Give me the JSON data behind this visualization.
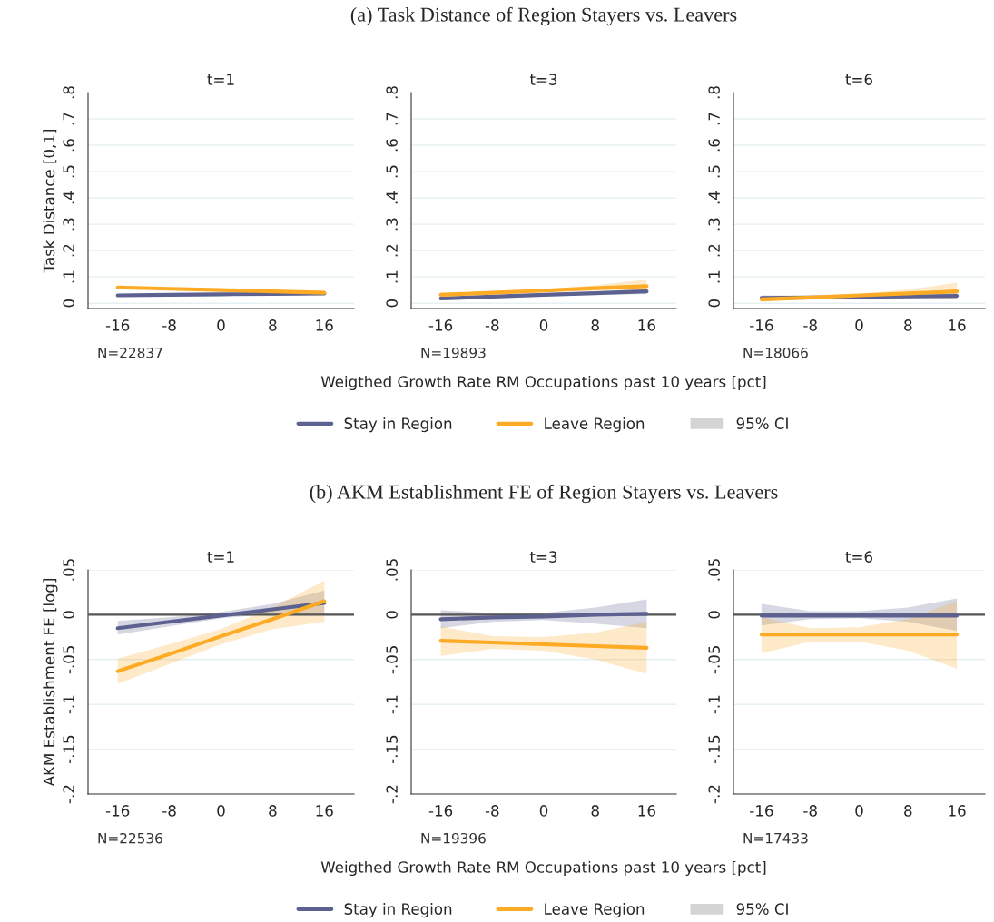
{
  "chart_data": [
    {
      "type": "line",
      "subtitle": "t=1",
      "ylabel": "Task Distance [0,1]",
      "grid": "y",
      "x": [
        -16,
        -8,
        0,
        8,
        16
      ],
      "xlim": [
        -20.6,
        20.6
      ],
      "xticks": [
        -16,
        -8,
        0,
        8,
        16
      ],
      "ylim": [
        -0.02,
        0.8
      ],
      "yticks": [
        0,
        {
          "value": 0.1,
          "label": ".1"
        },
        {
          "value": 0.2,
          "label": ".2"
        },
        {
          "value": 0.3,
          "label": ".3"
        },
        {
          "value": 0.4,
          "label": ".4"
        },
        {
          "value": 0.5,
          "label": ".5"
        },
        {
          "value": 0.6,
          "label": ".6"
        },
        {
          "value": 0.7,
          "label": ".7"
        },
        {
          "value": 0.8,
          "label": ".8"
        }
      ],
      "annotations": [
        "N=22837"
      ],
      "series": [
        {
          "color": "#5c6190",
          "values": [
            0.03,
            0.032,
            0.034,
            0.035,
            0.037
          ]
        },
        {
          "color": "#fdaa25",
          "values": [
            0.06,
            0.055,
            0.05,
            0.045,
            0.04
          ],
          "lower": [
            0.055,
            0.051,
            0.047,
            0.041,
            0.03
          ],
          "upper": [
            0.065,
            0.059,
            0.053,
            0.05,
            0.05
          ]
        }
      ]
    },
    {
      "type": "line",
      "title": "(a) Task Distance of Region Stayers vs. Leavers",
      "subtitle": "t=3",
      "xlabel": "Weigthed Growth Rate RM Occupations past 10 years [pct]",
      "legend": "bottom",
      "grid": "y",
      "x": [
        -16,
        -8,
        0,
        8,
        16
      ],
      "xlim": [
        -20.6,
        20.6
      ],
      "xticks": [
        -16,
        -8,
        0,
        8,
        16
      ],
      "ylim": [
        -0.02,
        0.8
      ],
      "yticks": [
        0,
        {
          "value": 0.1,
          "label": ".1"
        },
        {
          "value": 0.2,
          "label": ".2"
        },
        {
          "value": 0.3,
          "label": ".3"
        },
        {
          "value": 0.4,
          "label": ".4"
        },
        {
          "value": 0.5,
          "label": ".5"
        },
        {
          "value": 0.6,
          "label": ".6"
        },
        {
          "value": 0.7,
          "label": ".7"
        },
        {
          "value": 0.8,
          "label": ".8"
        }
      ],
      "annotations": [
        "N=19893",
        "95% CI"
      ],
      "series": [
        {
          "name": "Stay in Region",
          "color": "#5c6190",
          "values": [
            0.018,
            0.025,
            0.032,
            0.038,
            0.045
          ],
          "lower": [
            0.012,
            0.02,
            0.028,
            0.032,
            0.035
          ],
          "upper": [
            0.025,
            0.03,
            0.036,
            0.045,
            0.055
          ]
        },
        {
          "name": "Leave Region",
          "color": "#fdaa25",
          "values": [
            0.032,
            0.04,
            0.048,
            0.057,
            0.065
          ],
          "lower": [
            0.025,
            0.034,
            0.043,
            0.048,
            0.045
          ],
          "upper": [
            0.04,
            0.046,
            0.053,
            0.068,
            0.09
          ]
        }
      ]
    },
    {
      "type": "line",
      "subtitle": "t=6",
      "grid": "y",
      "x": [
        -16,
        -8,
        0,
        8,
        16
      ],
      "xlim": [
        -20.6,
        20.6
      ],
      "xticks": [
        -16,
        -8,
        0,
        8,
        16
      ],
      "ylim": [
        -0.02,
        0.8
      ],
      "yticks": [
        0,
        {
          "value": 0.1,
          "label": ".1"
        },
        {
          "value": 0.2,
          "label": ".2"
        },
        {
          "value": 0.3,
          "label": ".3"
        },
        {
          "value": 0.4,
          "label": ".4"
        },
        {
          "value": 0.5,
          "label": ".5"
        },
        {
          "value": 0.6,
          "label": ".6"
        },
        {
          "value": 0.7,
          "label": ".7"
        },
        {
          "value": 0.8,
          "label": ".8"
        }
      ],
      "annotations": [
        "N=18066"
      ],
      "series": [
        {
          "color": "#5c6190",
          "values": [
            0.02,
            0.022,
            0.024,
            0.026,
            0.028
          ],
          "lower": [
            0.008,
            0.016,
            0.02,
            0.019,
            0.015
          ],
          "upper": [
            0.03,
            0.028,
            0.028,
            0.033,
            0.04
          ]
        },
        {
          "color": "#fdaa25",
          "values": [
            0.015,
            0.022,
            0.03,
            0.037,
            0.045
          ],
          "lower": [
            0.005,
            0.016,
            0.025,
            0.023,
            0.015
          ],
          "upper": [
            0.025,
            0.028,
            0.035,
            0.052,
            0.078
          ]
        }
      ]
    },
    {
      "type": "line",
      "subtitle": "t=1",
      "ylabel": "AKM Establishment FE [log]",
      "grid": "y",
      "x": [
        -16,
        -8,
        0,
        8,
        16
      ],
      "xlim": [
        -20.6,
        20.6
      ],
      "xticks": [
        -16,
        -8,
        0,
        8,
        16
      ],
      "ylim": [
        -0.2,
        0.05
      ],
      "yticks": [
        {
          "value": -0.2,
          "label": "-.2"
        },
        {
          "value": -0.15,
          "label": "-.15"
        },
        {
          "value": -0.1,
          "label": "-.1"
        },
        {
          "value": -0.05,
          "label": "-.05"
        },
        0,
        {
          "value": 0.05,
          "label": ".05"
        }
      ],
      "ref_lines": [
        {
          "axis": "y",
          "value": 0,
          "color": "#555555"
        }
      ],
      "annotations": [
        "N=22536"
      ],
      "series": [
        {
          "color": "#5c6190",
          "values": [
            -0.015,
            -0.008,
            -0.001,
            0.006,
            0.013
          ],
          "lower": [
            -0.022,
            -0.013,
            -0.004,
            0.001,
            0.0
          ],
          "upper": [
            -0.007,
            -0.003,
            0.003,
            0.012,
            0.027
          ]
        },
        {
          "color": "#fdaa25",
          "values": [
            -0.063,
            -0.044,
            -0.024,
            -0.005,
            0.015
          ],
          "lower": [
            -0.077,
            -0.055,
            -0.033,
            -0.016,
            -0.008
          ],
          "upper": [
            -0.049,
            -0.033,
            -0.016,
            0.008,
            0.038
          ]
        }
      ]
    },
    {
      "type": "line",
      "title": "(b) AKM Establishment FE of Region Stayers vs. Leavers",
      "subtitle": "t=3",
      "xlabel": "Weigthed Growth Rate RM Occupations past 10 years [pct]",
      "legend": "bottom",
      "grid": "y",
      "x": [
        -16,
        -8,
        0,
        8,
        16
      ],
      "xlim": [
        -20.6,
        20.6
      ],
      "xticks": [
        -16,
        -8,
        0,
        8,
        16
      ],
      "ylim": [
        -0.2,
        0.05
      ],
      "yticks": [
        {
          "value": -0.2,
          "label": "-.2"
        },
        {
          "value": -0.15,
          "label": "-.15"
        },
        {
          "value": -0.1,
          "label": "-.1"
        },
        {
          "value": -0.05,
          "label": "-.05"
        },
        0,
        {
          "value": 0.05,
          "label": ".05"
        }
      ],
      "ref_lines": [
        {
          "axis": "y",
          "value": 0,
          "color": "#555555"
        }
      ],
      "annotations": [
        "N=19396",
        "95% CI"
      ],
      "series": [
        {
          "name": "Stay in Region",
          "color": "#5c6190",
          "values": [
            -0.005,
            -0.003,
            -0.002,
            0.0,
            0.001
          ],
          "lower": [
            -0.015,
            -0.008,
            -0.006,
            -0.01,
            -0.015
          ],
          "upper": [
            0.005,
            0.002,
            0.002,
            0.008,
            0.017
          ]
        },
        {
          "name": "Leave Region",
          "color": "#fdaa25",
          "values": [
            -0.029,
            -0.031,
            -0.033,
            -0.035,
            -0.037
          ],
          "lower": [
            -0.046,
            -0.038,
            -0.04,
            -0.05,
            -0.066
          ],
          "upper": [
            -0.013,
            -0.024,
            -0.025,
            -0.02,
            -0.008
          ]
        }
      ]
    },
    {
      "type": "line",
      "subtitle": "t=6",
      "grid": "y",
      "x": [
        -16,
        -8,
        0,
        8,
        16
      ],
      "xlim": [
        -20.6,
        20.6
      ],
      "xticks": [
        -16,
        -8,
        0,
        8,
        16
      ],
      "ylim": [
        -0.2,
        0.05
      ],
      "yticks": [
        {
          "value": -0.2,
          "label": "-.2"
        },
        {
          "value": -0.15,
          "label": "-.15"
        },
        {
          "value": -0.1,
          "label": "-.1"
        },
        {
          "value": -0.05,
          "label": "-.05"
        },
        0,
        {
          "value": 0.05,
          "label": ".05"
        }
      ],
      "ref_lines": [
        {
          "axis": "y",
          "value": 0,
          "color": "#555555"
        }
      ],
      "annotations": [
        "N=17433"
      ],
      "series": [
        {
          "color": "#5c6190",
          "values": [
            -0.001,
            -0.001,
            -0.001,
            -0.001,
            -0.001
          ],
          "lower": [
            -0.012,
            -0.005,
            -0.004,
            -0.008,
            -0.018
          ],
          "upper": [
            0.012,
            0.004,
            0.004,
            0.008,
            0.018
          ]
        },
        {
          "color": "#fdaa25",
          "values": [
            -0.022,
            -0.022,
            -0.022,
            -0.022,
            -0.022
          ],
          "lower": [
            -0.043,
            -0.03,
            -0.03,
            -0.04,
            -0.06
          ],
          "upper": [
            -0.003,
            -0.015,
            -0.014,
            -0.005,
            0.015
          ]
        }
      ]
    }
  ]
}
